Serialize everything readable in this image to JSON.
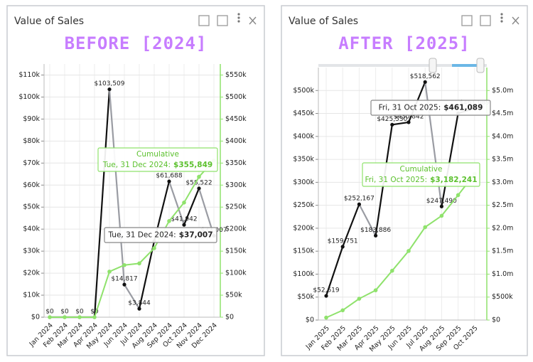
{
  "chart_data": [
    {
      "type": "line",
      "title": "Value of Sales",
      "subtitle": "BEFORE [2024]",
      "categories": [
        "Jan 2024",
        "Feb 2024",
        "Mar 2024",
        "Apr 2024",
        "May 2024",
        "Jun 2024",
        "Jul 2024",
        "Aug 2024",
        "Sep 2024",
        "Oct 2024",
        "Nov 2024",
        "Dec 2024"
      ],
      "series": [
        {
          "values": [
            0,
            0,
            0,
            0,
            103509,
            14817,
            3844,
            34520,
            61688,
            41942,
            58522,
            37007
          ],
          "value_labels": [
            "$0",
            "$0",
            "$0",
            "$0",
            "$103,509",
            "$14,817",
            "$3,844",
            null,
            "$61,688",
            "$41,942",
            "$58,522",
            "$37,007"
          ],
          "up_color": "#111111",
          "down_color": "#9a9ca3"
        },
        {
          "name": "Cumulative",
          "color": "#8fe26c",
          "axis": "y2",
          "values": [
            0,
            0,
            0,
            0,
            103509,
            118326,
            122170,
            156690,
            218378,
            260320,
            318842,
            355849
          ]
        }
      ],
      "ylim": [
        0,
        115000
      ],
      "yticks": [
        {
          "value": 0,
          "label": "$0"
        },
        {
          "value": 10000,
          "label": "$10k"
        },
        {
          "value": 20000,
          "label": "$20k"
        },
        {
          "value": 30000,
          "label": "$30k"
        },
        {
          "value": 40000,
          "label": "$40k"
        },
        {
          "value": 50000,
          "label": "$50k"
        },
        {
          "value": 60000,
          "label": "$60k"
        },
        {
          "value": 70000,
          "label": "$70k"
        },
        {
          "value": 80000,
          "label": "$80k"
        },
        {
          "value": 90000,
          "label": "$90k"
        },
        {
          "value": 100000,
          "label": "$100k"
        },
        {
          "value": 110000,
          "label": "$110k"
        }
      ],
      "y2lim": [
        0,
        575000
      ],
      "y2ticks": [
        {
          "value": 0,
          "label": "$0"
        },
        {
          "value": 50000,
          "label": "$50k"
        },
        {
          "value": 100000,
          "label": "$100k"
        },
        {
          "value": 150000,
          "label": "$150k"
        },
        {
          "value": 200000,
          "label": "$200k"
        },
        {
          "value": 250000,
          "label": "$250k"
        },
        {
          "value": 300000,
          "label": "$300k"
        },
        {
          "value": 350000,
          "label": "$350k"
        },
        {
          "value": 400000,
          "label": "$400k"
        },
        {
          "value": 450000,
          "label": "$450k"
        },
        {
          "value": 500000,
          "label": "$500k"
        },
        {
          "value": 550000,
          "label": "$550k"
        }
      ],
      "grid": true,
      "tooltips": [
        {
          "label": "Tue, 31 Dec 2024:",
          "value": "$355,849"
        },
        {
          "label": "Tue, 31 Dec 2024:",
          "value": "$37,007"
        }
      ]
    },
    {
      "type": "line",
      "title": "Value of Sales",
      "subtitle": "AFTER [2025]",
      "categories": [
        "Jan 2025",
        "Feb 2025",
        "Mar 2025",
        "Apr 2025",
        "May 2025",
        "Jun 2025",
        "Jul 2025",
        "Aug 2025",
        "Sep 2025",
        "Oct 2025"
      ],
      "series": [
        {
          "values": [
            52619,
            159751,
            252167,
            183886,
            425530,
            430842,
            518562,
            247490,
            450305,
            461089
          ],
          "value_labels": [
            "$52,619",
            "$159,751",
            "$252,167",
            "$183,886",
            "$425,530",
            "$430,842",
            "$518,562",
            "$247,490",
            null,
            "$461,089"
          ],
          "up_color": "#111111",
          "down_color": "#9a9ca3"
        },
        {
          "name": "Cumulative",
          "color": "#8fe26c",
          "axis": "y2",
          "values": [
            52619,
            212370,
            464537,
            648423,
            1073953,
            1504795,
            2023357,
            2270847,
            2721152,
            3182241
          ]
        }
      ],
      "ylim": [
        0,
        550000
      ],
      "yticks": [
        {
          "value": 0,
          "label": "$0"
        },
        {
          "value": 50000,
          "label": "$50k"
        },
        {
          "value": 100000,
          "label": "$100k"
        },
        {
          "value": 150000,
          "label": "$150k"
        },
        {
          "value": 200000,
          "label": "$200k"
        },
        {
          "value": 250000,
          "label": "$250k"
        },
        {
          "value": 300000,
          "label": "$300k"
        },
        {
          "value": 350000,
          "label": "$350k"
        },
        {
          "value": 400000,
          "label": "$400k"
        },
        {
          "value": 450000,
          "label": "$450k"
        },
        {
          "value": 500000,
          "label": "$500k"
        }
      ],
      "y2lim": [
        0,
        5500000
      ],
      "y2ticks": [
        {
          "value": 0,
          "label": "$0"
        },
        {
          "value": 500000,
          "label": "$500k"
        },
        {
          "value": 1000000,
          "label": "$1.0m"
        },
        {
          "value": 1500000,
          "label": "$1.5m"
        },
        {
          "value": 2000000,
          "label": "$2.0m"
        },
        {
          "value": 2500000,
          "label": "$2.5m"
        },
        {
          "value": 3000000,
          "label": "$3.0m"
        },
        {
          "value": 3500000,
          "label": "$3.5m"
        },
        {
          "value": 4000000,
          "label": "$4.0m"
        },
        {
          "value": 4500000,
          "label": "$4.5m"
        },
        {
          "value": 5000000,
          "label": "$5.0m"
        }
      ],
      "grid": true,
      "tooltips": [
        {
          "label": "Fri, 31 Oct 2025:",
          "value": "$3,182,241"
        },
        {
          "label": "Fri, 31 Oct 2025:",
          "value": "$461,089"
        }
      ]
    }
  ]
}
